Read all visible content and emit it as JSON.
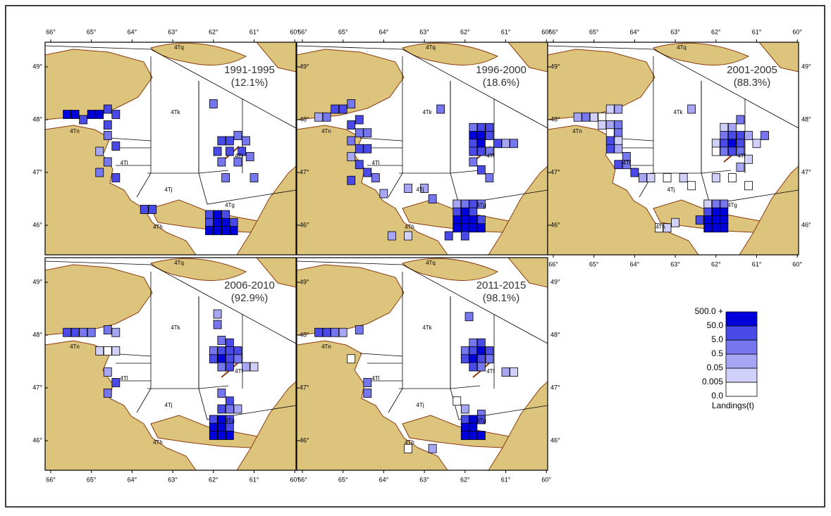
{
  "lon_ticks": [
    {
      "value": 66,
      "label": "66°"
    },
    {
      "value": 65,
      "label": "65°"
    },
    {
      "value": 64,
      "label": "64°"
    },
    {
      "value": 63,
      "label": "63°"
    },
    {
      "value": 62,
      "label": "62°"
    },
    {
      "value": 61,
      "label": "61°"
    },
    {
      "value": 60,
      "label": "60°"
    }
  ],
  "lat_ticks": [
    {
      "value": 49,
      "label": "49°"
    },
    {
      "value": 48,
      "label": "48°"
    },
    {
      "value": 47,
      "label": "47°"
    },
    {
      "value": 46,
      "label": "46°"
    }
  ],
  "zone_labels": [
    "4Tq",
    "4Tk",
    "4Tl",
    "4Tj",
    "4Tf",
    "4Tg",
    "4Th",
    "4Tn"
  ],
  "panels": [
    {
      "period": "1991-1995",
      "share": "(12.1%)",
      "cells": [
        [
          65.6,
          48.1,
          60
        ],
        [
          65.4,
          48.1,
          120
        ],
        [
          65.2,
          48.0,
          30
        ],
        [
          65.0,
          48.1,
          200
        ],
        [
          64.8,
          48.1,
          80
        ],
        [
          64.6,
          48.2,
          40
        ],
        [
          64.4,
          48.1,
          8
        ],
        [
          64.6,
          47.9,
          15
        ],
        [
          64.6,
          47.7,
          3
        ],
        [
          64.4,
          47.5,
          6
        ],
        [
          64.8,
          47.4,
          0.3
        ],
        [
          64.6,
          47.2,
          2
        ],
        [
          64.8,
          47.0,
          4
        ],
        [
          64.4,
          46.9,
          9
        ],
        [
          62.0,
          48.3,
          3
        ],
        [
          61.8,
          47.6,
          7
        ],
        [
          61.6,
          47.6,
          20
        ],
        [
          61.4,
          47.7,
          4
        ],
        [
          61.2,
          47.6,
          1
        ],
        [
          61.9,
          47.4,
          5
        ],
        [
          61.6,
          47.4,
          40
        ],
        [
          61.3,
          47.4,
          6
        ],
        [
          61.1,
          47.3,
          2
        ],
        [
          61.8,
          47.2,
          0.8
        ],
        [
          61.4,
          47.2,
          3
        ],
        [
          61.7,
          46.9,
          0.5
        ],
        [
          61.0,
          46.9,
          2
        ],
        [
          62.1,
          46.2,
          30
        ],
        [
          61.9,
          46.2,
          60
        ],
        [
          61.7,
          46.2,
          10
        ],
        [
          62.1,
          46.05,
          25
        ],
        [
          61.9,
          46.05,
          150
        ],
        [
          61.7,
          46.05,
          90
        ],
        [
          61.5,
          46.05,
          20
        ],
        [
          62.1,
          45.9,
          300
        ],
        [
          61.9,
          45.9,
          600
        ],
        [
          61.7,
          45.9,
          200
        ],
        [
          61.5,
          45.9,
          700
        ],
        [
          63.7,
          46.3,
          40
        ],
        [
          63.5,
          46.3,
          12
        ]
      ]
    },
    {
      "period": "1996-2000",
      "share": "(18.6%)",
      "cells": [
        [
          65.6,
          48.05,
          0.3
        ],
        [
          65.4,
          48.05,
          2
        ],
        [
          65.2,
          48.2,
          6
        ],
        [
          65.0,
          48.2,
          20
        ],
        [
          64.8,
          48.3,
          3
        ],
        [
          64.6,
          48.0,
          8
        ],
        [
          64.8,
          47.9,
          15
        ],
        [
          64.6,
          47.75,
          4
        ],
        [
          64.4,
          47.75,
          1
        ],
        [
          64.8,
          47.6,
          0.5
        ],
        [
          64.6,
          47.45,
          30
        ],
        [
          64.4,
          47.45,
          9
        ],
        [
          64.8,
          47.3,
          0.2
        ],
        [
          64.6,
          47.15,
          5
        ],
        [
          64.4,
          47.0,
          12
        ],
        [
          64.2,
          46.9,
          0.8
        ],
        [
          64.8,
          46.85,
          40
        ],
        [
          64.0,
          46.6,
          0.3
        ],
        [
          63.4,
          46.7,
          0.05
        ],
        [
          63.0,
          46.7,
          0.2
        ],
        [
          62.8,
          46.5,
          1
        ],
        [
          62.6,
          48.2,
          3
        ],
        [
          61.8,
          47.85,
          4
        ],
        [
          61.6,
          47.85,
          20
        ],
        [
          61.4,
          47.85,
          8
        ],
        [
          61.8,
          47.7,
          60
        ],
        [
          61.6,
          47.7,
          300
        ],
        [
          61.4,
          47.7,
          30
        ],
        [
          61.2,
          47.55,
          6
        ],
        [
          61.8,
          47.55,
          15
        ],
        [
          61.6,
          47.55,
          80
        ],
        [
          61.0,
          47.55,
          0.4
        ],
        [
          60.8,
          47.55,
          1
        ],
        [
          61.8,
          47.4,
          7
        ],
        [
          61.6,
          47.4,
          25
        ],
        [
          61.4,
          47.4,
          3
        ],
        [
          61.8,
          47.2,
          2
        ],
        [
          61.6,
          47.05,
          9
        ],
        [
          61.4,
          46.9,
          1
        ],
        [
          62.2,
          46.4,
          0.3
        ],
        [
          62.0,
          46.4,
          4
        ],
        [
          61.8,
          46.4,
          10
        ],
        [
          61.6,
          46.4,
          2
        ],
        [
          62.2,
          46.25,
          20
        ],
        [
          62.0,
          46.25,
          90
        ],
        [
          61.8,
          46.25,
          40
        ],
        [
          62.2,
          46.1,
          60
        ],
        [
          62.0,
          46.1,
          250
        ],
        [
          61.8,
          46.1,
          120
        ],
        [
          61.6,
          46.1,
          30
        ],
        [
          62.2,
          45.95,
          400
        ],
        [
          62.0,
          45.95,
          800
        ],
        [
          61.8,
          45.95,
          200
        ],
        [
          61.6,
          45.95,
          50
        ],
        [
          62.4,
          45.8,
          5
        ],
        [
          62.0,
          45.8,
          30
        ],
        [
          63.8,
          45.8,
          0.2
        ],
        [
          63.4,
          45.8,
          0.01
        ]
      ]
    },
    {
      "period": "2001-2005",
      "share": "(88.3%)",
      "cells": [
        [
          65.4,
          48.05,
          0.3
        ],
        [
          65.2,
          48.05,
          2
        ],
        [
          65.0,
          48.05,
          0.02
        ],
        [
          64.8,
          48.05,
          0.004
        ],
        [
          64.6,
          48.2,
          0.03
        ],
        [
          64.4,
          48.2,
          0.3
        ],
        [
          64.8,
          47.9,
          0.01
        ],
        [
          64.6,
          47.9,
          0.2
        ],
        [
          64.4,
          47.9,
          4
        ],
        [
          64.6,
          47.75,
          0.003
        ],
        [
          64.4,
          47.75,
          0.6
        ],
        [
          64.6,
          47.6,
          20
        ],
        [
          64.4,
          47.6,
          0.04
        ],
        [
          64.6,
          47.45,
          9
        ],
        [
          64.4,
          47.45,
          0.2
        ],
        [
          64.2,
          47.3,
          1
        ],
        [
          64.4,
          47.15,
          30
        ],
        [
          64.2,
          47.15,
          3
        ],
        [
          64.0,
          47.0,
          12
        ],
        [
          63.8,
          46.9,
          0.4
        ],
        [
          63.6,
          46.9,
          0.01
        ],
        [
          63.2,
          46.9,
          0.003
        ],
        [
          62.8,
          46.9,
          0.02
        ],
        [
          62.6,
          46.75,
          0.004
        ],
        [
          62.6,
          48.2,
          0.3
        ],
        [
          61.8,
          47.85,
          0.02
        ],
        [
          61.6,
          47.85,
          0.4
        ],
        [
          61.4,
          48.0,
          2
        ],
        [
          61.8,
          47.7,
          3
        ],
        [
          61.6,
          47.7,
          30
        ],
        [
          61.4,
          47.7,
          9
        ],
        [
          61.2,
          47.7,
          0.3
        ],
        [
          62.0,
          47.55,
          0.01
        ],
        [
          61.8,
          47.55,
          8
        ],
        [
          61.6,
          47.55,
          60
        ],
        [
          61.4,
          47.55,
          20
        ],
        [
          61.0,
          47.55,
          0.04
        ],
        [
          60.8,
          47.7,
          0.6
        ],
        [
          62.0,
          47.4,
          0.003
        ],
        [
          61.8,
          47.4,
          2
        ],
        [
          61.6,
          47.4,
          15
        ],
        [
          61.4,
          47.4,
          1
        ],
        [
          61.2,
          47.25,
          0.01
        ],
        [
          61.4,
          47.1,
          0.2
        ],
        [
          62.0,
          46.9,
          0.04
        ],
        [
          61.6,
          46.9,
          0.003
        ],
        [
          61.2,
          46.75,
          0.002
        ],
        [
          62.2,
          46.4,
          0.03
        ],
        [
          62.0,
          46.4,
          3
        ],
        [
          61.8,
          46.4,
          0.5
        ],
        [
          62.2,
          46.25,
          40
        ],
        [
          62.0,
          46.25,
          200
        ],
        [
          61.8,
          46.25,
          90
        ],
        [
          62.4,
          46.1,
          6
        ],
        [
          62.2,
          46.1,
          300
        ],
        [
          62.0,
          46.1,
          700
        ],
        [
          61.8,
          46.1,
          150
        ],
        [
          62.2,
          45.95,
          500
        ],
        [
          62.0,
          45.95,
          900
        ],
        [
          61.8,
          45.95,
          80
        ],
        [
          63.0,
          46.05,
          0.01
        ],
        [
          63.4,
          45.95,
          0.002
        ],
        [
          63.2,
          45.95,
          0.02
        ]
      ]
    },
    {
      "period": "2006-2010",
      "share": "(92.9%)",
      "cells": [
        [
          65.6,
          48.05,
          9
        ],
        [
          65.4,
          48.05,
          20
        ],
        [
          65.2,
          48.05,
          4
        ],
        [
          65.0,
          48.05,
          0.5
        ],
        [
          64.6,
          48.1,
          2
        ],
        [
          64.4,
          48.05,
          0.3
        ],
        [
          64.8,
          47.7,
          0.01
        ],
        [
          64.6,
          47.7,
          0.002
        ],
        [
          64.4,
          47.7,
          0.03
        ],
        [
          64.6,
          47.3,
          0.4
        ],
        [
          64.4,
          47.1,
          6
        ],
        [
          64.6,
          46.9,
          2
        ],
        [
          61.9,
          48.4,
          0.3
        ],
        [
          61.9,
          48.2,
          0.6
        ],
        [
          61.8,
          47.9,
          3
        ],
        [
          61.6,
          47.85,
          8
        ],
        [
          62.0,
          47.7,
          2
        ],
        [
          61.8,
          47.7,
          15
        ],
        [
          61.6,
          47.7,
          30
        ],
        [
          61.4,
          47.7,
          5
        ],
        [
          62.0,
          47.55,
          6
        ],
        [
          61.8,
          47.55,
          60
        ],
        [
          61.6,
          47.55,
          20
        ],
        [
          61.4,
          47.55,
          3
        ],
        [
          61.2,
          47.4,
          0.3
        ],
        [
          61.0,
          47.4,
          0.02
        ],
        [
          61.8,
          47.4,
          4
        ],
        [
          61.6,
          47.4,
          9
        ],
        [
          61.8,
          46.9,
          1
        ],
        [
          61.6,
          46.75,
          5
        ],
        [
          61.8,
          46.6,
          12
        ],
        [
          61.6,
          46.6,
          4
        ],
        [
          61.4,
          46.6,
          0.2
        ],
        [
          62.0,
          46.4,
          20
        ],
        [
          61.8,
          46.4,
          70
        ],
        [
          61.6,
          46.4,
          30
        ],
        [
          62.0,
          46.25,
          90
        ],
        [
          61.8,
          46.25,
          150
        ],
        [
          61.6,
          46.25,
          40
        ],
        [
          62.0,
          46.1,
          300
        ],
        [
          61.8,
          46.1,
          600
        ],
        [
          61.6,
          46.1,
          80
        ]
      ]
    },
    {
      "period": "2011-2015",
      "share": "(98.1%)",
      "cells": [
        [
          65.6,
          48.05,
          6
        ],
        [
          65.4,
          48.05,
          15
        ],
        [
          65.2,
          48.05,
          3
        ],
        [
          65.0,
          48.05,
          0.4
        ],
        [
          64.6,
          48.1,
          0.7
        ],
        [
          64.8,
          47.55,
          0.002
        ],
        [
          64.4,
          47.1,
          4
        ],
        [
          64.4,
          46.9,
          2
        ],
        [
          61.9,
          48.35,
          0.8
        ],
        [
          61.8,
          47.85,
          2
        ],
        [
          61.6,
          47.85,
          8
        ],
        [
          62.0,
          47.7,
          4
        ],
        [
          61.8,
          47.7,
          30
        ],
        [
          61.6,
          47.7,
          60
        ],
        [
          61.4,
          47.7,
          9
        ],
        [
          62.0,
          47.55,
          5
        ],
        [
          61.8,
          47.55,
          80
        ],
        [
          61.6,
          47.55,
          25
        ],
        [
          61.4,
          47.55,
          3
        ],
        [
          61.8,
          47.4,
          6
        ],
        [
          61.6,
          47.4,
          0.5
        ],
        [
          61.0,
          47.3,
          0.3
        ],
        [
          60.8,
          47.3,
          0.02
        ],
        [
          62.2,
          46.75,
          0.003
        ],
        [
          62.0,
          46.6,
          0.2
        ],
        [
          61.6,
          46.5,
          0.6
        ],
        [
          62.0,
          46.4,
          20
        ],
        [
          61.8,
          46.4,
          70
        ],
        [
          61.6,
          46.4,
          30
        ],
        [
          62.0,
          46.25,
          100
        ],
        [
          61.8,
          46.25,
          200
        ],
        [
          62.0,
          46.1,
          400
        ],
        [
          61.8,
          46.1,
          700
        ],
        [
          61.6,
          46.1,
          90
        ],
        [
          63.4,
          45.85,
          0.003
        ],
        [
          62.8,
          45.85,
          0.3
        ]
      ]
    }
  ],
  "legend": {
    "title": "Landings(t)",
    "breaks": [
      {
        "value": 0,
        "label": "0.0"
      },
      0.005,
      0.05,
      0.5,
      {
        "value": 5,
        "label": "5.0"
      },
      {
        "value": 50,
        "label": "50.0"
      },
      {
        "value": 500,
        "label": "500.0 +"
      }
    ],
    "colors": [
      "#ffffff",
      "#d0d0fa",
      "#a6a6f4",
      "#7676ee",
      "#4a4ae8",
      "#0000dd"
    ]
  }
}
